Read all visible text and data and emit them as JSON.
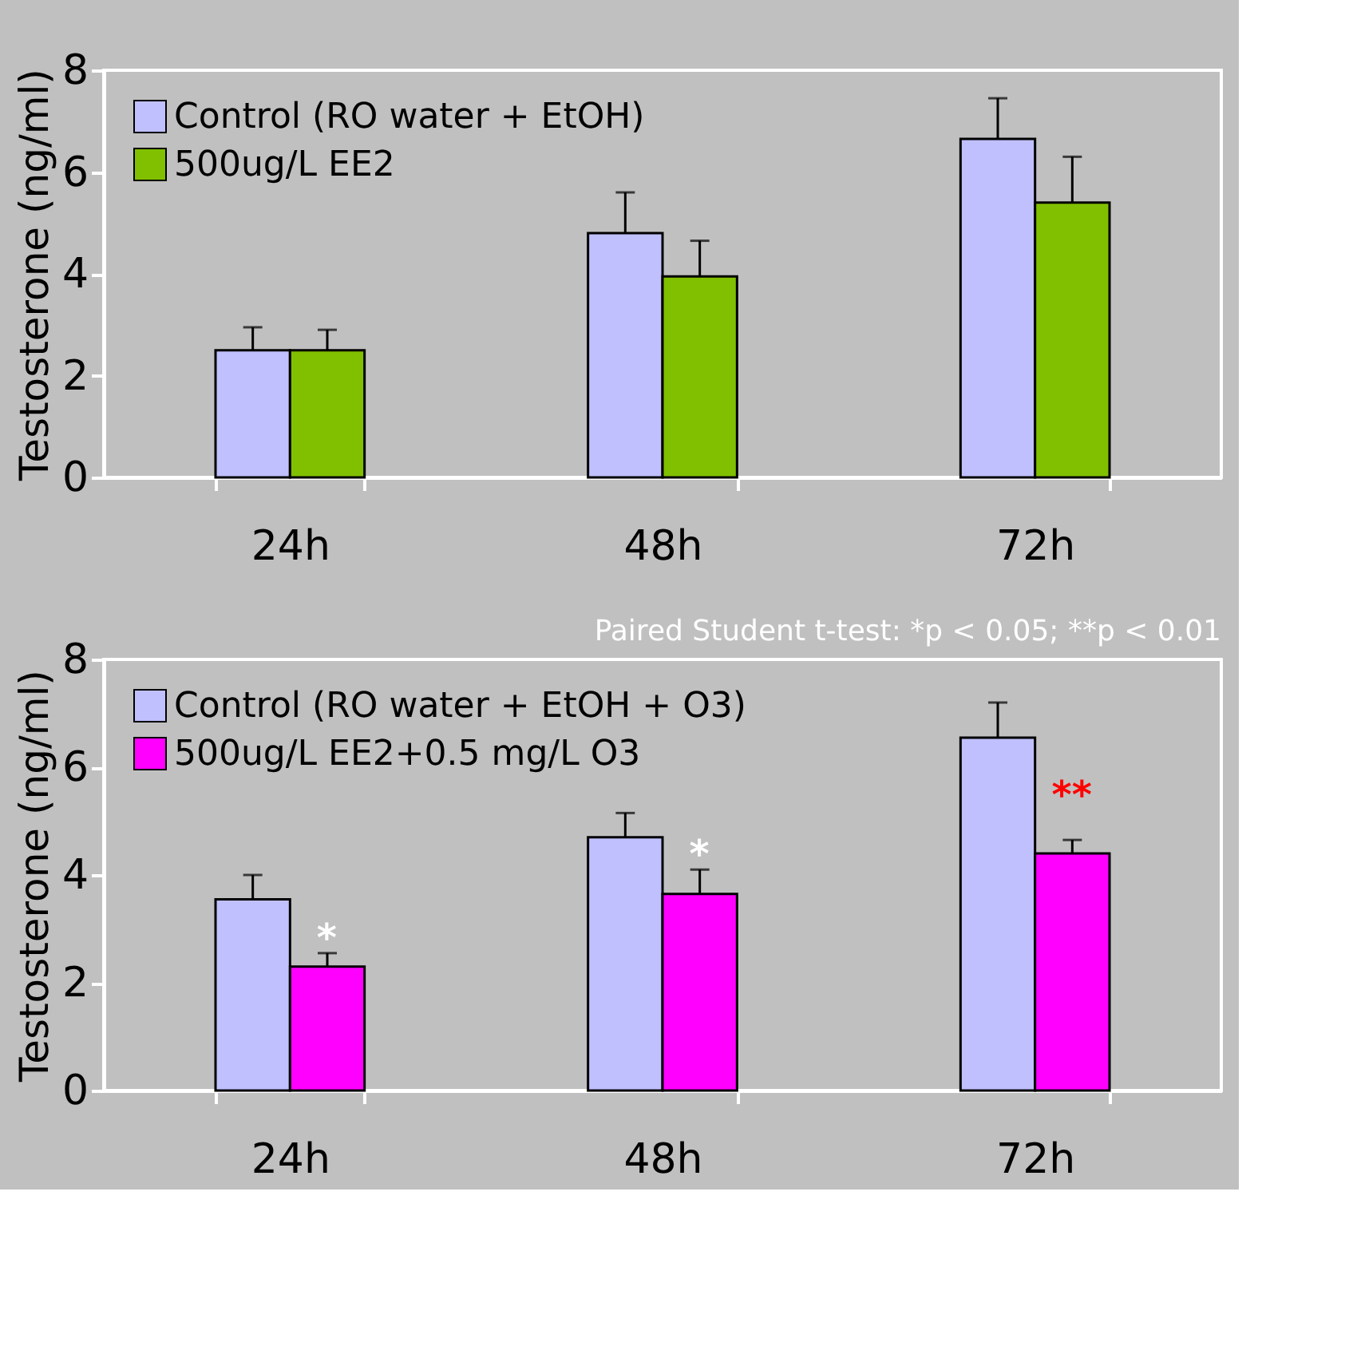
{
  "chart_data": [
    {
      "type": "bar",
      "ylabel": "Testosterone (ng/ml)",
      "categories": [
        "24h",
        "48h",
        "72h"
      ],
      "series": [
        {
          "name": "Control (RO water + EtOH)",
          "color": "#c0c0ff",
          "values": [
            2.5,
            4.8,
            6.65
          ],
          "errors": [
            [
              2.5,
              2.95
            ],
            [
              4.8,
              5.6
            ],
            [
              6.65,
              7.45
            ]
          ]
        },
        {
          "name": "500ug/L EE2",
          "color": "#80c000",
          "values": [
            2.5,
            3.95,
            5.4
          ],
          "errors": [
            [
              2.5,
              2.9
            ],
            [
              3.95,
              4.65
            ],
            [
              5.4,
              6.3
            ]
          ]
        }
      ],
      "ylim": [
        0,
        8
      ],
      "yticks": [
        0,
        2,
        4,
        6,
        8
      ],
      "grid": false,
      "legend": "top left"
    },
    {
      "type": "bar",
      "ylabel": "Testosterone (ng/ml)",
      "categories": [
        "24h",
        "48h",
        "72h"
      ],
      "series": [
        {
          "name": "Control (RO water + EtOH + O3)",
          "color": "#c0c0ff",
          "values": [
            3.55,
            4.7,
            6.55
          ],
          "errors": [
            [
              3.55,
              4.0
            ],
            [
              4.7,
              5.15
            ],
            [
              6.55,
              7.2
            ]
          ]
        },
        {
          "name": "500ug/L EE2+0.5 mg/L O3",
          "color": "#ff00ff",
          "values": [
            2.3,
            3.65,
            4.4
          ],
          "errors": [
            [
              2.3,
              2.55
            ],
            [
              3.65,
              4.1
            ],
            [
              4.4,
              4.65
            ]
          ]
        }
      ],
      "ylim": [
        0,
        8
      ],
      "yticks": [
        0,
        2,
        4,
        6,
        8
      ],
      "grid": false,
      "legend": "top left",
      "annotations": [
        "Paired Student t-test:  *p < 0.05;  **p < 0.01",
        {
          "text": "*",
          "x": "24h",
          "y": 2.8
        },
        {
          "text": "*",
          "x": "48h",
          "y": 4.35
        },
        {
          "text": "**",
          "x": "72h",
          "y": 5.45
        }
      ]
    }
  ]
}
